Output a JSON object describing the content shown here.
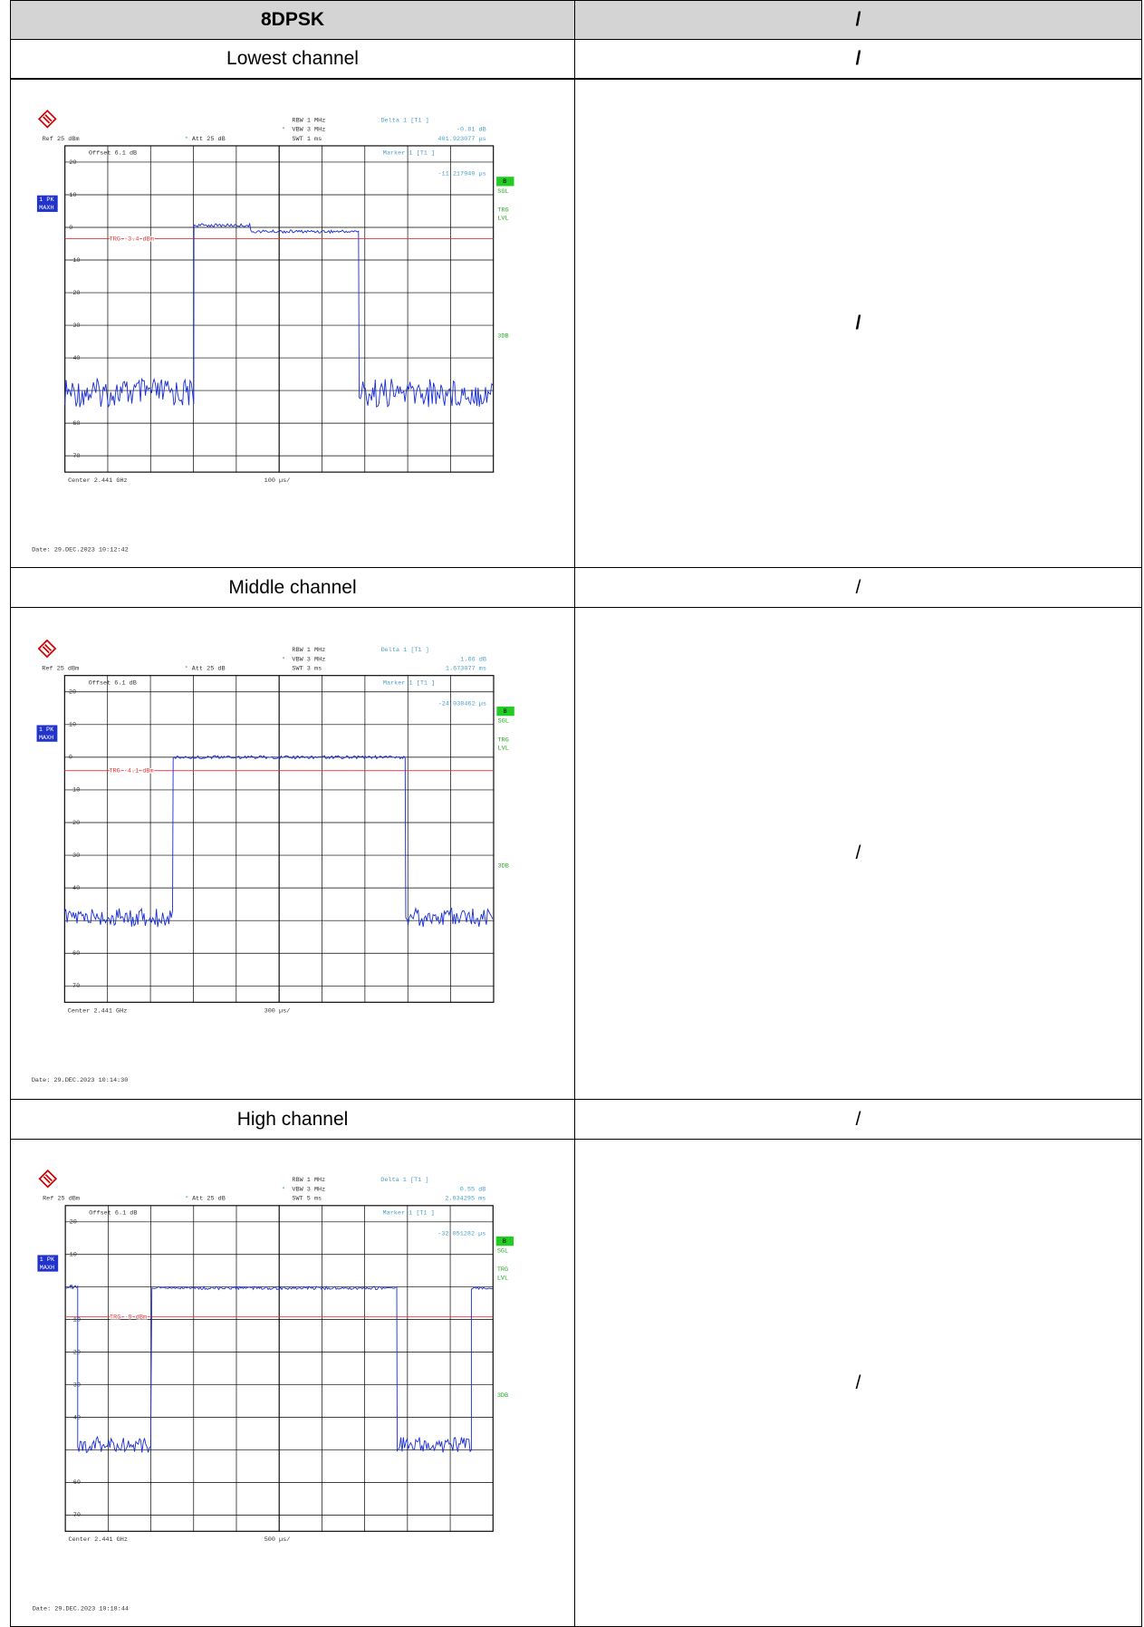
{
  "table": {
    "header": [
      "8DPSK",
      "/"
    ],
    "rows": [
      {
        "label": "Lowest channel",
        "label_result": "/",
        "result": "/",
        "screen": {
          "rbw": "RBW 1 MHz",
          "vbw": "VBW 3 MHz",
          "swt": "SWT 1 ms",
          "ref": "Ref 25 dBm",
          "att": "Att 25 dB",
          "delta_title": "Delta 1 [T1 ]",
          "delta_value": "-0.81 dB",
          "delta_time": "401.923077 µs",
          "offset": "Offset 6.1 dB",
          "marker_title": "Marker 1 [T1 ]",
          "marker_time": "-11.217949 µs",
          "trace_label": [
            "1 PK",
            "MAXH"
          ],
          "status": [
            "B",
            "SGL",
            "TRG",
            "LVL",
            "3DB"
          ],
          "yticks": [
            "20",
            "10",
            "0",
            "-10",
            "-20",
            "-30",
            "-40",
            "-60",
            "-70"
          ],
          "trg": "TRG -3.4 dBm",
          "center": "Center 2.441 GHz",
          "sweep": "100 µs/",
          "date": "Date: 29.DEC.2023 10:12:42"
        }
      },
      {
        "label": "Middle channel",
        "label_result": "/",
        "result": "/",
        "screen": {
          "rbw": "RBW 1 MHz",
          "vbw": "VBW 3 MHz",
          "swt": "SWT 3 ms",
          "ref": "Ref 25 dBm",
          "att": "Att 25 dB",
          "delta_title": "Delta 1 [T1 ]",
          "delta_value": "1.66 dB",
          "delta_time": "1.673077 ms",
          "offset": "Offset 6.1 dB",
          "marker_title": "Marker 1 [T1 ]",
          "marker_time": "-24.038462 µs",
          "trace_label": [
            "1 PK",
            "MAXH"
          ],
          "status": [
            "B",
            "SGL",
            "TRG",
            "LVL",
            "3DB"
          ],
          "yticks": [
            "20",
            "10",
            "0",
            "-10",
            "-20",
            "-30",
            "-40",
            "-60",
            "-70"
          ],
          "trg": "TRG -4.1 dBm",
          "center": "Center 2.441 GHz",
          "sweep": "300 µs/",
          "date": "Date: 29.DEC.2023 10:14:30"
        }
      },
      {
        "label": "High channel",
        "label_result": "/",
        "result": "/",
        "screen": {
          "rbw": "RBW 1 MHz",
          "vbw": "VBW 3 MHz",
          "swt": "SWT 5 ms",
          "ref": "Ref 25 dBm",
          "att": "Att 25 dB",
          "delta_title": "Delta 1 [T1 ]",
          "delta_value": "0.55 dB",
          "delta_time": "2.934295 ms",
          "offset": "Offset 6.1 dB",
          "marker_title": "Marker 1 [T1 ]",
          "marker_time": "-32.051282 µs",
          "trace_label": [
            "1 PK",
            "MAXH"
          ],
          "status": [
            "B",
            "SGL",
            "TRG",
            "LVL",
            "3DB"
          ],
          "yticks": [
            "20",
            "10",
            "0",
            "-10",
            "-20",
            "-30",
            "-40",
            "-60",
            "-70"
          ],
          "trg": "TRG -9 dBm",
          "center": "Center 2.441 GHz",
          "sweep": "500 µs/",
          "date": "Date: 29.DEC.2023 10:18:44"
        }
      }
    ]
  }
}
